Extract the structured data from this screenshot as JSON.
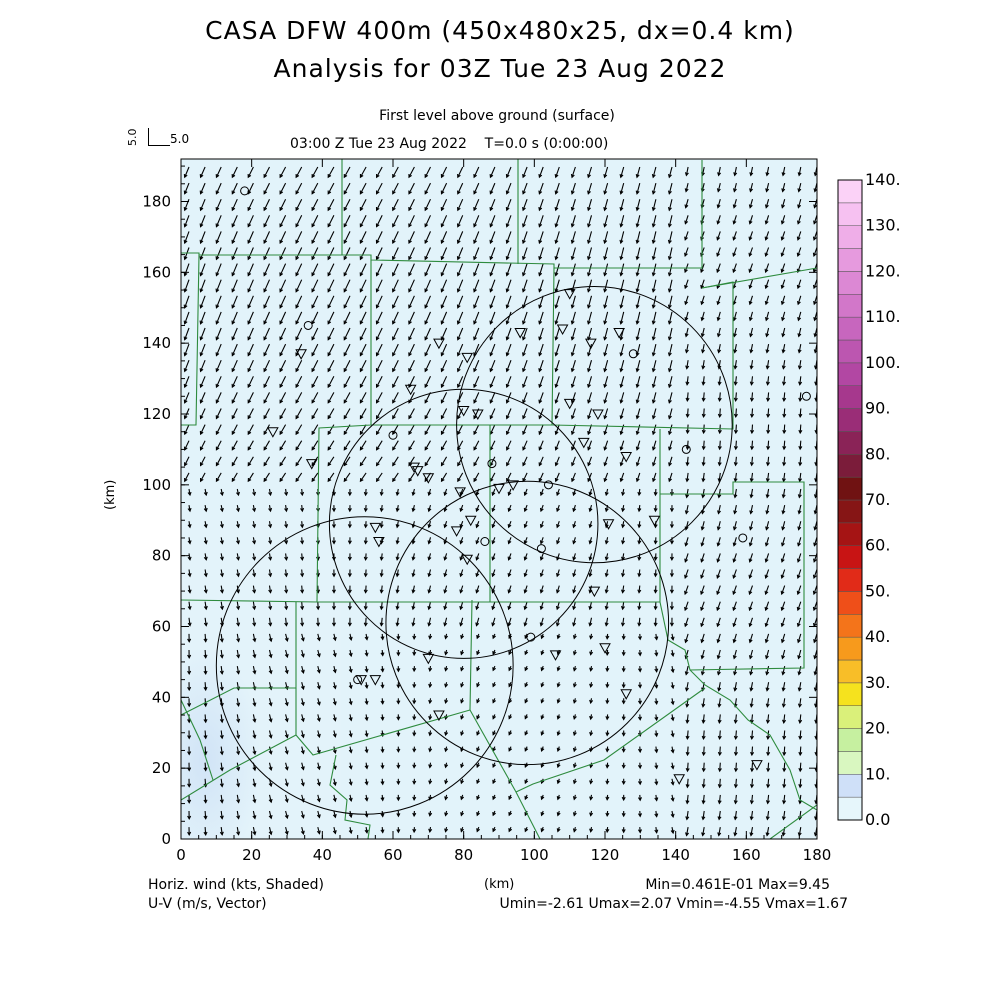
{
  "header": {
    "title_line1": "CASA DFW 400m (450x480x25, dx=0.4 km)",
    "title_line2": "Analysis for 03Z Tue 23 Aug 2022",
    "level": "First level above ground (surface)",
    "time": "03:00 Z Tue 23 Aug 2022    T=0.0 s (0:00:00)",
    "ref_vector_y": "5.0",
    "ref_vector_x": "5.0"
  },
  "footer": {
    "left_line1": "Horiz. wind (kts, Shaded)",
    "left_line2": "U-V (m/s, Vector)",
    "x_unit": "(km)",
    "stats_line1": "Min=0.461E-01 Max=9.45",
    "stats_line2": "Umin=-2.61 Umax=2.07 Vmin=-4.55 Vmax=1.67"
  },
  "chart_data": {
    "type": "heatmap",
    "xlabel": "(km)",
    "ylabel": "(km)",
    "xlim": [
      0,
      180
    ],
    "ylim": [
      0,
      192
    ],
    "x_ticks": [
      0,
      20,
      40,
      60,
      80,
      100,
      120,
      140,
      160,
      180
    ],
    "y_ticks": [
      0,
      20,
      40,
      60,
      80,
      100,
      120,
      140,
      160,
      180
    ],
    "colorbar": {
      "levels": [
        "0.0",
        "10.",
        "20.",
        "30.",
        "40.",
        "50.",
        "60.",
        "70.",
        "80.",
        "90.",
        "100.",
        "110.",
        "120.",
        "130.",
        "140."
      ],
      "colors": [
        "#e6f6fb",
        "#cfe0f8",
        "#d9f7c0",
        "#c6f0a0",
        "#daf07a",
        "#f5e21e",
        "#f8be28",
        "#f79a1c",
        "#f4741a",
        "#ef4f19",
        "#e12b18",
        "#c81414",
        "#a51414",
        "#861515",
        "#701212",
        "#7b1c3a",
        "#8a2357",
        "#9a2d77",
        "#a6388d",
        "#b247a3",
        "#bc56b0",
        "#c766be",
        "#d277c9",
        "#dc88d4",
        "#e69ade",
        "#efaee8",
        "#f6c1f1",
        "#fbd2f7"
      ]
    },
    "stats": {
      "min": 0.0461,
      "max": 9.45,
      "umin": -2.61,
      "umax": 2.07,
      "vmin": -4.55,
      "vmax": 1.67
    },
    "radar_circles_km": [
      {
        "x": 117,
        "y": 117,
        "r": 39
      },
      {
        "x": 80,
        "y": 89,
        "r": 38
      },
      {
        "x": 98,
        "y": 61,
        "r": 40
      },
      {
        "x": 52,
        "y": 49,
        "r": 42
      }
    ],
    "stations_circle": [
      [
        18,
        183
      ],
      [
        36,
        145
      ],
      [
        60,
        114
      ],
      [
        88,
        106
      ],
      [
        104,
        100
      ],
      [
        86,
        84
      ],
      [
        102,
        82
      ],
      [
        99,
        57
      ],
      [
        50,
        45
      ],
      [
        128,
        137
      ],
      [
        143,
        110
      ],
      [
        159,
        85
      ],
      [
        177,
        125
      ]
    ],
    "stations_triangle": [
      [
        110,
        154
      ],
      [
        96,
        143
      ],
      [
        108,
        144
      ],
      [
        116,
        140
      ],
      [
        124,
        143
      ],
      [
        73,
        140
      ],
      [
        81,
        136
      ],
      [
        34,
        137
      ],
      [
        65,
        127
      ],
      [
        80,
        121
      ],
      [
        84,
        120
      ],
      [
        110,
        123
      ],
      [
        118,
        120
      ],
      [
        26,
        115
      ],
      [
        37,
        106
      ],
      [
        66,
        105
      ],
      [
        67,
        104
      ],
      [
        70,
        102
      ],
      [
        79,
        98
      ],
      [
        90,
        99
      ],
      [
        94,
        100
      ],
      [
        126,
        108
      ],
      [
        114,
        112
      ],
      [
        82,
        90
      ],
      [
        78,
        87
      ],
      [
        121,
        89
      ],
      [
        134,
        90
      ],
      [
        55,
        88
      ],
      [
        56,
        84
      ],
      [
        81,
        79
      ],
      [
        117,
        70
      ],
      [
        70,
        51
      ],
      [
        106,
        52
      ],
      [
        120,
        54
      ],
      [
        51,
        45
      ],
      [
        55,
        45
      ],
      [
        73,
        35
      ],
      [
        126,
        41
      ],
      [
        141,
        17
      ],
      [
        163,
        21
      ]
    ]
  }
}
